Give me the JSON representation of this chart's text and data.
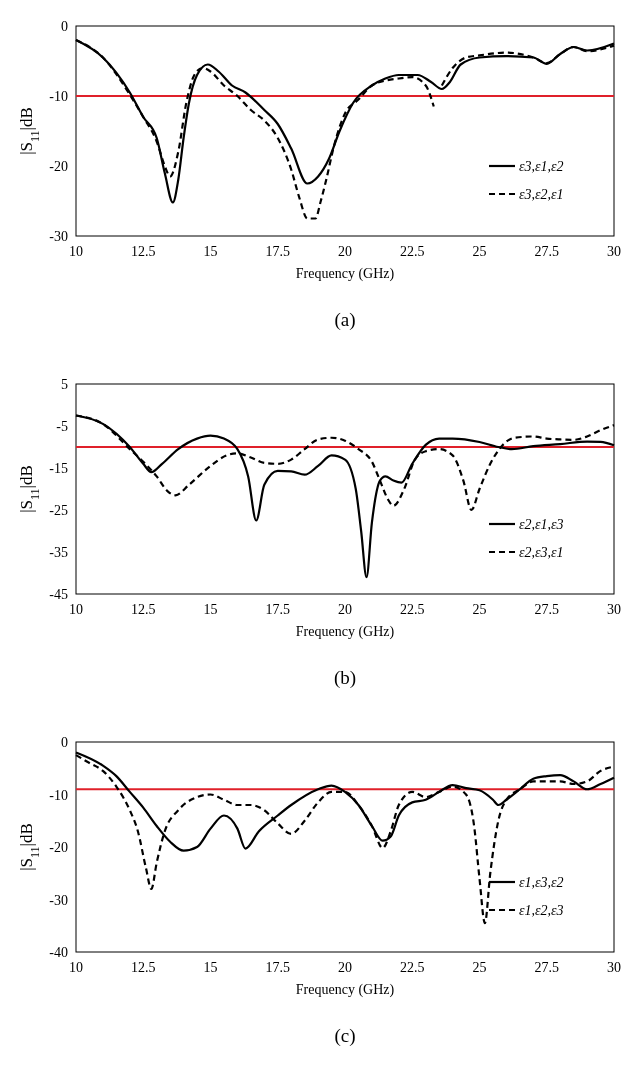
{
  "chart_data": [
    {
      "type": "line",
      "xlabel": "Frequency (GHz)",
      "ylabel": "|S$_{11}$|dB",
      "annotations": [
        "(a)"
      ],
      "xlim": [
        10,
        30
      ],
      "xticks": [
        10,
        12.5,
        15,
        17.5,
        20,
        22.5,
        25,
        27.5,
        30
      ],
      "ylim": [
        -30,
        0
      ],
      "yticks": [
        -30,
        -20,
        -10,
        0
      ],
      "legend": "bottom right",
      "ref_lines": [
        {
          "axis": "y",
          "value": -10,
          "color": "#e0202a"
        }
      ],
      "series": [
        {
          "name": "ε3,ε1,ε2",
          "color": "#000000",
          "line_style": "solid",
          "x": [
            10,
            11,
            12,
            12.5,
            13,
            13.3,
            13.6,
            13.8,
            14,
            14.2,
            14.5,
            14.9,
            15.3,
            15.8,
            16.3,
            17,
            17.5,
            18,
            18.6,
            19,
            19.4,
            19.8,
            20.3,
            21,
            21.5,
            22,
            22.7,
            23.2,
            23.6,
            23.9,
            24.3,
            25,
            26,
            27,
            27.5,
            28,
            28.5,
            29,
            30
          ],
          "values": [
            -2,
            -4.5,
            -9.5,
            -13,
            -16,
            -21,
            -25.2,
            -22,
            -16,
            -11,
            -7,
            -5.5,
            -6.5,
            -8.5,
            -9.5,
            -12,
            -14,
            -17.5,
            -22.5,
            -21.5,
            -19,
            -15,
            -11,
            -8.5,
            -7.5,
            -7,
            -7,
            -8,
            -9,
            -8,
            -5.5,
            -4.5,
            -4.3,
            -4.5,
            -5.4,
            -4,
            -3,
            -3.5,
            -2.5
          ]
        },
        {
          "name": "ε3,ε2,ε1",
          "color": "#000000",
          "line_style": "dashed",
          "x": [
            10,
            11,
            12,
            12.5,
            13,
            13.3,
            13.5,
            13.8,
            14.1,
            14.4,
            14.7,
            15,
            15.5,
            16,
            16.5,
            17,
            17.5,
            18,
            18.3,
            18.6,
            18.9,
            19.1,
            19.3,
            19.6,
            20,
            20.5,
            21,
            21.5,
            22,
            22.5,
            23,
            23.3,
            23.4,
            23.6,
            24,
            24.5,
            25,
            26,
            27,
            27.5,
            28,
            28.5,
            29,
            30
          ],
          "values": [
            -2,
            -4.5,
            -9.8,
            -13,
            -16.5,
            -20,
            -21.5,
            -18,
            -11,
            -7,
            -6,
            -6.5,
            -8.5,
            -10,
            -12,
            -13.5,
            -16,
            -20.5,
            -24.5,
            -27.5,
            -27.5,
            -25,
            -22,
            -17,
            -12.5,
            -10.5,
            -8.5,
            -7.8,
            -7.5,
            -7.3,
            -8.5,
            -11.5,
            null,
            -8.5,
            -6,
            -4.5,
            -4.2,
            -3.8,
            -4.5,
            -5.3,
            -4,
            -3,
            -3.6,
            -2.8
          ]
        }
      ]
    },
    {
      "type": "line",
      "xlabel": "Frequency (GHz)",
      "ylabel": "|S$_{11}$|dB",
      "annotations": [
        "(b)"
      ],
      "xlim": [
        10,
        30
      ],
      "xticks": [
        10,
        12.5,
        15,
        17.5,
        20,
        22.5,
        25,
        27.5,
        30
      ],
      "ylim": [
        -45,
        5
      ],
      "yticks": [
        -45,
        -35,
        -25,
        -15,
        -5,
        5
      ],
      "legend": "bottom right",
      "ref_lines": [
        {
          "axis": "y",
          "value": -10,
          "color": "#e0202a"
        }
      ],
      "series": [
        {
          "name": "ε2,ε1,ε3",
          "color": "#000000",
          "line_style": "solid",
          "x": [
            10,
            11,
            12,
            12.5,
            12.8,
            13.2,
            13.8,
            14.5,
            15,
            15.5,
            16,
            16.4,
            16.7,
            17,
            17.5,
            18,
            18.5,
            19,
            19.5,
            20,
            20.4,
            20.6,
            20.8,
            21,
            21.3,
            21.5,
            21.8,
            22.1,
            22.5,
            23,
            23.5,
            24,
            25,
            25.7,
            26.2,
            27,
            28,
            29,
            29.5,
            30
          ],
          "values": [
            -2.5,
            -4.5,
            -10,
            -14,
            -16,
            -14,
            -10.5,
            -8,
            -7.3,
            -8,
            -10.5,
            -17,
            -27.5,
            -19,
            -15.7,
            -15.8,
            -16.6,
            -14.5,
            -12,
            -13,
            -20,
            -30,
            -41,
            -28,
            -18,
            -17,
            -18,
            -18.5,
            -14,
            -9.5,
            -8,
            -8,
            -8.8,
            -10,
            -10.5,
            -9.8,
            -9.3,
            -8.7,
            -8.8,
            -9.6
          ]
        },
        {
          "name": "ε2,ε3,ε1",
          "color": "#000000",
          "line_style": "dashed",
          "x": [
            10,
            11,
            12,
            12.5,
            13,
            13.4,
            13.7,
            14.2,
            15,
            15.6,
            16,
            16.5,
            17,
            17.5,
            18,
            18.5,
            19,
            19.5,
            20,
            20.5,
            21,
            21.3,
            21.6,
            21.8,
            22.2,
            22.6,
            23,
            23.5,
            24,
            24.4,
            24.7,
            25,
            25.4,
            25.8,
            26.3,
            27,
            27.5,
            28,
            28.5,
            29,
            29.5,
            30
          ],
          "values": [
            -2.5,
            -4.5,
            -10.5,
            -13.5,
            -17,
            -20.5,
            -21.5,
            -19,
            -14.5,
            -12,
            -11.5,
            -12.5,
            -13.8,
            -14,
            -13,
            -10.5,
            -8.2,
            -7.8,
            -8.5,
            -10.5,
            -13.5,
            -18,
            -22.5,
            -24,
            -20,
            -13,
            -11,
            -10.5,
            -12,
            -18,
            -25,
            -20,
            -14,
            -10,
            -7.8,
            -7.5,
            -8,
            -8.2,
            -8.3,
            -7.5,
            -6,
            -4.8
          ]
        }
      ]
    },
    {
      "type": "line",
      "xlabel": "Frequency (GHz)",
      "ylabel": "|S$_{11}$|dB",
      "annotations": [
        "(c)"
      ],
      "xlim": [
        10,
        30
      ],
      "xticks": [
        10,
        12.5,
        15,
        17.5,
        20,
        22.5,
        25,
        27.5,
        30
      ],
      "ylim": [
        -40,
        0
      ],
      "yticks": [
        -40,
        -30,
        -20,
        -10,
        0
      ],
      "legend": "bottom right",
      "ref_lines": [
        {
          "axis": "y",
          "value": -9,
          "color": "#e0202a"
        }
      ],
      "series": [
        {
          "name": "ε1,ε3,ε2",
          "color": "#000000",
          "line_style": "solid",
          "x": [
            10,
            11,
            11.5,
            12,
            12.5,
            13,
            13.5,
            14,
            14.5,
            15,
            15.5,
            16,
            16.3,
            16.8,
            17.5,
            18,
            19,
            19.5,
            20,
            20.5,
            21,
            21.4,
            21.7,
            22,
            22.5,
            23,
            23.5,
            24,
            24.5,
            25,
            25.5,
            25.7,
            26,
            26.5,
            27,
            27.5,
            28,
            28.5,
            29,
            29.5,
            30
          ],
          "values": [
            -2,
            -4.5,
            -6.5,
            -9.5,
            -12.5,
            -16,
            -19,
            -20.7,
            -20,
            -16.5,
            -14,
            -16.5,
            -20.3,
            -17,
            -14,
            -12,
            -9,
            -8.3,
            -9.5,
            -12,
            -16,
            -18.8,
            -18,
            -14,
            -11.5,
            -11,
            -9.5,
            -8.2,
            -8.8,
            -9.2,
            -11,
            -12,
            -11,
            -9,
            -7,
            -6.5,
            -6.3,
            -7.5,
            -9,
            -8,
            -6.8
          ]
        },
        {
          "name": "ε1,ε2,ε3",
          "color": "#000000",
          "line_style": "dashed",
          "x": [
            10,
            10.5,
            11,
            11.5,
            12,
            12.3,
            12.6,
            12.8,
            13,
            13.3,
            13.8,
            14.5,
            15,
            15.5,
            16,
            16.5,
            17,
            17.5,
            18,
            18.5,
            19,
            19.5,
            20,
            20.5,
            21,
            21.4,
            21.7,
            22,
            22.5,
            23,
            23.5,
            24,
            24.5,
            24.8,
            25,
            25.2,
            25.4,
            25.7,
            26,
            26.5,
            27,
            28,
            28.5,
            29,
            29.5,
            30
          ],
          "values": [
            -2.5,
            -4,
            -5.5,
            -8.5,
            -13,
            -17,
            -24,
            -28,
            -23,
            -17,
            -13,
            -10.5,
            -10,
            -11,
            -12,
            -12,
            -13,
            -15.5,
            -17.5,
            -15,
            -11.5,
            -9.5,
            -9.5,
            -12,
            -16,
            -20.2,
            -17,
            -12,
            -9.5,
            -10.5,
            -9.5,
            -8.5,
            -10,
            -16,
            -26,
            -34.5,
            -25,
            -15,
            -11,
            -9,
            -7.5,
            -7.5,
            -8,
            -7.5,
            -5.5,
            -4.7
          ]
        }
      ]
    }
  ]
}
